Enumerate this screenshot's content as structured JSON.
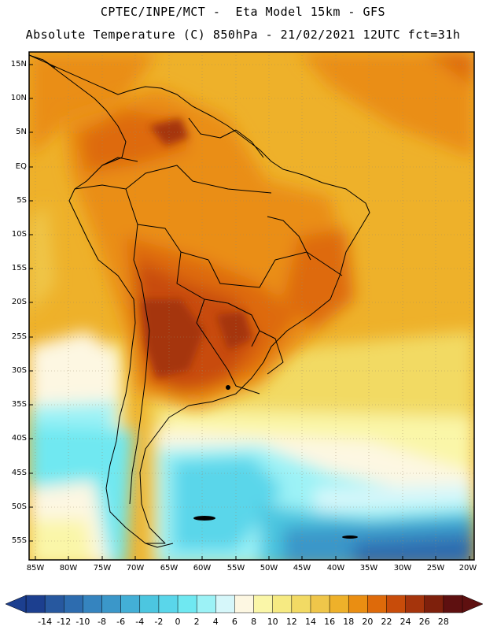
{
  "header": {
    "line1": "CPTEC/INPE/MCT -  Eta Model 15km - GFS",
    "line2": "Absolute Temperature (C) 850hPa - 21/02/2021 12UTC fct=31h"
  },
  "map": {
    "lat_labels": [
      "15N",
      "10N",
      "5N",
      "EQ",
      "5S",
      "10S",
      "15S",
      "20S",
      "25S",
      "30S",
      "35S",
      "40S",
      "45S",
      "50S",
      "55S"
    ],
    "lon_labels": [
      "85W",
      "80W",
      "75W",
      "70W",
      "65W",
      "60W",
      "55W",
      "50W",
      "45W",
      "40W",
      "35W",
      "30W",
      "25W",
      "20W"
    ]
  },
  "colorbar": {
    "labels": [
      "-14",
      "-12",
      "-10",
      "-8",
      "-6",
      "-4",
      "-2",
      "0",
      "2",
      "4",
      "6",
      "8",
      "10",
      "12",
      "14",
      "16",
      "18",
      "20",
      "22",
      "24",
      "26",
      "28"
    ],
    "colors": [
      "#1c3f8f",
      "#27589f",
      "#2d6caf",
      "#3584bf",
      "#3b97c9",
      "#43afd6",
      "#4cc6e0",
      "#5ad6ea",
      "#6fe8f1",
      "#9cf2f6",
      "#d6f7fa",
      "#fdf7e2",
      "#faf6a8",
      "#f6ea82",
      "#f2da64",
      "#efc64a",
      "#eeb12a",
      "#ea8e12",
      "#de6a0a",
      "#c84c0a",
      "#a5340c",
      "#7e200c",
      "#5e1010"
    ]
  }
}
